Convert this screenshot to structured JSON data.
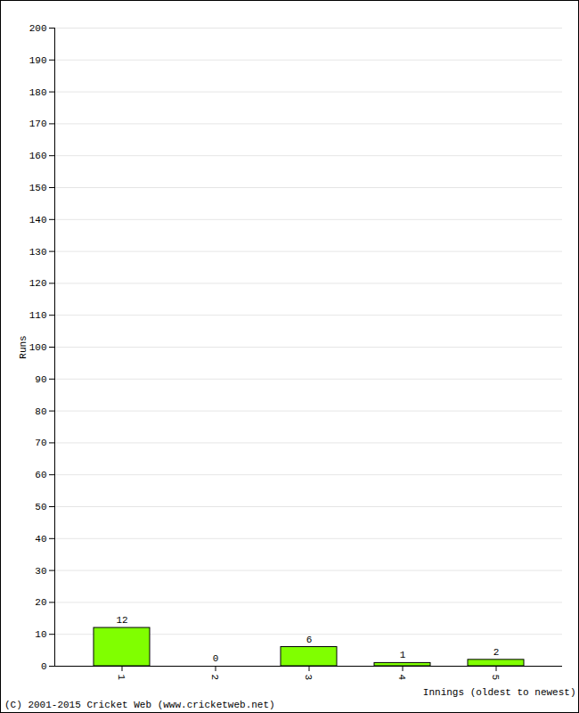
{
  "chart_data": {
    "type": "bar",
    "caption": "(C) 2001-2015 Cricket Web (www.cricketweb.net)",
    "x_label": "Innings (oldest to newest)",
    "y_label": "Runs",
    "categories": [
      "1",
      "2",
      "3",
      "4",
      "5"
    ],
    "values": [
      12,
      0,
      6,
      1,
      2
    ],
    "color": "#80ff00",
    "ylim": [
      0,
      200
    ],
    "yticks": [
      0,
      10,
      20,
      30,
      40,
      50,
      60,
      70,
      80,
      90,
      100,
      110,
      120,
      130,
      140,
      150,
      160,
      170,
      180,
      190,
      200
    ],
    "grid": true,
    "data_labels": true
  }
}
